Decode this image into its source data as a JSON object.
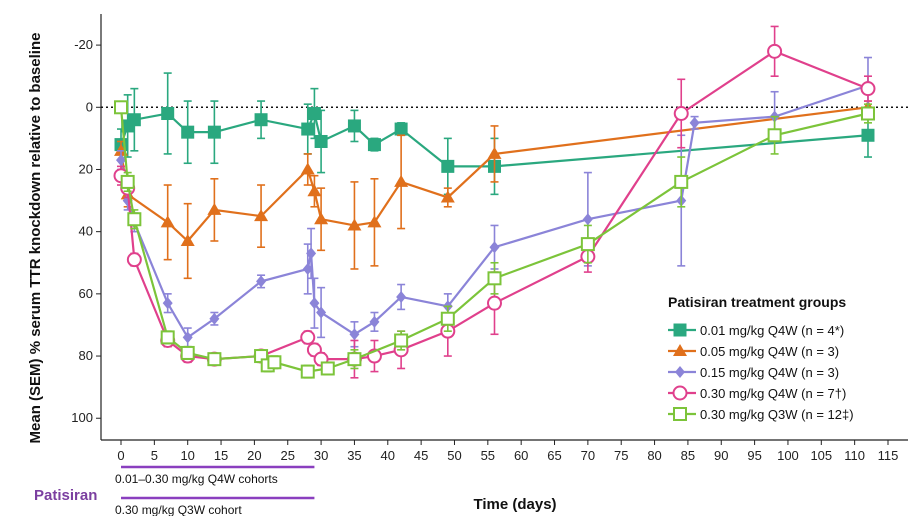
{
  "chart_data": {
    "type": "line",
    "title": "",
    "xlabel": "Time (days)",
    "ylabel": "Mean (SEM) % serum TTR knockdown relative to baseline",
    "xlim": [
      -3,
      118
    ],
    "ylim": [
      -30,
      107
    ],
    "y_inverted": true,
    "grid": false,
    "x_ticks": [
      0,
      5,
      10,
      15,
      20,
      25,
      30,
      35,
      40,
      45,
      50,
      55,
      60,
      65,
      70,
      75,
      80,
      85,
      90,
      95,
      100,
      105,
      110,
      115
    ],
    "x_tick_labels": [
      "0",
      "5",
      "10",
      "15",
      "20",
      "25",
      "30",
      "35",
      "40",
      "45",
      "50",
      "55",
      "60",
      "65",
      "70",
      "75",
      "80",
      "85",
      "90",
      "95",
      "100",
      "105",
      "110",
      "115"
    ],
    "y_ticks": [
      -20,
      0,
      20,
      40,
      60,
      80,
      100
    ],
    "y_tick_labels": [
      "-20",
      "0",
      "20",
      "40",
      "60",
      "80",
      "100"
    ],
    "baseline": 0,
    "legend": {
      "title": "Patisiran treatment groups",
      "placement": "right"
    },
    "series": [
      {
        "name": "0.01 mg/kg Q4W (n = 4*)",
        "color": "#2aa87f",
        "marker": "square-filled",
        "points": [
          {
            "x": 0,
            "y": 12,
            "err": 5
          },
          {
            "x": 1,
            "y": 6,
            "err": 10
          },
          {
            "x": 2,
            "y": 4,
            "err": 10
          },
          {
            "x": 7,
            "y": 2,
            "err": 13
          },
          {
            "x": 10,
            "y": 8,
            "err": 10
          },
          {
            "x": 14,
            "y": 8,
            "err": 10
          },
          {
            "x": 21,
            "y": 4,
            "err": 6
          },
          {
            "x": 28,
            "y": 7,
            "err": 8
          },
          {
            "x": 29,
            "y": 2,
            "err": 8
          },
          {
            "x": 30,
            "y": 11,
            "err": 10
          },
          {
            "x": 35,
            "y": 6,
            "err": 5
          },
          {
            "x": 38,
            "y": 12,
            "err": 2
          },
          {
            "x": 42,
            "y": 7,
            "err": 2
          },
          {
            "x": 49,
            "y": 19,
            "err": 9
          },
          {
            "x": 56,
            "y": 19,
            "err": 9
          },
          {
            "x": 112,
            "y": 9,
            "err": 7
          }
        ]
      },
      {
        "name": "0.05 mg/kg Q4W (n = 3)",
        "color": "#e0701c",
        "marker": "triangle-filled",
        "points": [
          {
            "x": 0,
            "y": 14,
            "err": 3
          },
          {
            "x": 1,
            "y": 28,
            "err": 4
          },
          {
            "x": 7,
            "y": 37,
            "err": 12
          },
          {
            "x": 10,
            "y": 43,
            "err": 12
          },
          {
            "x": 14,
            "y": 33,
            "err": 10
          },
          {
            "x": 21,
            "y": 35,
            "err": 10
          },
          {
            "x": 28,
            "y": 20,
            "err": 5
          },
          {
            "x": 29,
            "y": 27,
            "err": 5
          },
          {
            "x": 30,
            "y": 36,
            "err": 10
          },
          {
            "x": 35,
            "y": 38,
            "err": 14
          },
          {
            "x": 38,
            "y": 37,
            "err": 14
          },
          {
            "x": 42,
            "y": 24,
            "err": 15
          },
          {
            "x": 49,
            "y": 29,
            "err": 3
          },
          {
            "x": 56,
            "y": 15,
            "err": 9
          },
          {
            "x": 112,
            "y": 0,
            "err": 2
          }
        ]
      },
      {
        "name": "0.15 mg/kg Q4W (n = 3)",
        "color": "#8b84d8",
        "marker": "diamond-filled",
        "points": [
          {
            "x": 0,
            "y": 17,
            "err": 3
          },
          {
            "x": 1,
            "y": 30,
            "err": 3
          },
          {
            "x": 2,
            "y": 37,
            "err": 3
          },
          {
            "x": 7,
            "y": 63,
            "err": 3
          },
          {
            "x": 10,
            "y": 74,
            "err": 3
          },
          {
            "x": 14,
            "y": 68,
            "err": 2
          },
          {
            "x": 21,
            "y": 56,
            "err": 2
          },
          {
            "x": 28,
            "y": 52,
            "err": 8
          },
          {
            "x": 28.5,
            "y": 47,
            "err": 8
          },
          {
            "x": 29,
            "y": 63,
            "err": 8
          },
          {
            "x": 30,
            "y": 66,
            "err": 8
          },
          {
            "x": 35,
            "y": 73,
            "err": 4
          },
          {
            "x": 38,
            "y": 69,
            "err": 3
          },
          {
            "x": 42,
            "y": 61,
            "err": 4
          },
          {
            "x": 49,
            "y": 64,
            "err": 4
          },
          {
            "x": 56,
            "y": 45,
            "err": 7
          },
          {
            "x": 70,
            "y": 36,
            "err": 15
          },
          {
            "x": 84,
            "y": 30,
            "err": 21
          },
          {
            "x": 86,
            "y": 5,
            "err": 2
          },
          {
            "x": 98,
            "y": 3,
            "err": 8
          },
          {
            "x": 112,
            "y": -7,
            "err": 9
          }
        ]
      },
      {
        "name": "0.30 mg/kg Q4W (n = 7†)",
        "color": "#e0408c",
        "marker": "circle-open",
        "points": [
          {
            "x": 0,
            "y": 22,
            "err": 3
          },
          {
            "x": 1,
            "y": 26,
            "err": 3
          },
          {
            "x": 2,
            "y": 49,
            "err": 2
          },
          {
            "x": 7,
            "y": 75,
            "err": 2
          },
          {
            "x": 10,
            "y": 80,
            "err": 2
          },
          {
            "x": 14,
            "y": 81,
            "err": 1
          },
          {
            "x": 21,
            "y": 80,
            "err": 2
          },
          {
            "x": 28,
            "y": 74,
            "err": 2
          },
          {
            "x": 29,
            "y": 78,
            "err": 2
          },
          {
            "x": 30,
            "y": 81,
            "err": 2
          },
          {
            "x": 35,
            "y": 81,
            "err": 6
          },
          {
            "x": 38,
            "y": 80,
            "err": 5
          },
          {
            "x": 42,
            "y": 78,
            "err": 6
          },
          {
            "x": 49,
            "y": 72,
            "err": 8
          },
          {
            "x": 56,
            "y": 63,
            "err": 10
          },
          {
            "x": 70,
            "y": 48,
            "err": 5
          },
          {
            "x": 84,
            "y": 2,
            "err": 11
          },
          {
            "x": 98,
            "y": -18,
            "err": 8
          },
          {
            "x": 112,
            "y": -6,
            "err": 4
          }
        ]
      },
      {
        "name": "0.30 mg/kg Q3W (n = 12‡)",
        "color": "#7cc43a",
        "marker": "square-open",
        "points": [
          {
            "x": 0,
            "y": 0,
            "err": 1
          },
          {
            "x": 1,
            "y": 24,
            "err": 3
          },
          {
            "x": 2,
            "y": 36,
            "err": 3
          },
          {
            "x": 7,
            "y": 74,
            "err": 2
          },
          {
            "x": 10,
            "y": 79,
            "err": 2
          },
          {
            "x": 14,
            "y": 81,
            "err": 1
          },
          {
            "x": 21,
            "y": 80,
            "err": 2
          },
          {
            "x": 22,
            "y": 83,
            "err": 2
          },
          {
            "x": 23,
            "y": 82,
            "err": 2
          },
          {
            "x": 28,
            "y": 85,
            "err": 2
          },
          {
            "x": 31,
            "y": 84,
            "err": 2
          },
          {
            "x": 35,
            "y": 81,
            "err": 3
          },
          {
            "x": 42,
            "y": 75,
            "err": 3
          },
          {
            "x": 49,
            "y": 68,
            "err": 4
          },
          {
            "x": 56,
            "y": 55,
            "err": 5
          },
          {
            "x": 70,
            "y": 44,
            "err": 6
          },
          {
            "x": 84,
            "y": 24,
            "err": 8
          },
          {
            "x": 98,
            "y": 9,
            "err": 6
          },
          {
            "x": 112,
            "y": 2,
            "err": 3
          }
        ]
      }
    ],
    "dosing_annotation": {
      "label": "Patisiran",
      "bars": [
        {
          "text": "0.01–0.30 mg/kg Q4W cohorts",
          "x_start": 0,
          "x_end": 29
        },
        {
          "text": "0.30 mg/kg Q3W cohort",
          "x_start": 0,
          "x_end": 29
        }
      ],
      "color": "#8a3fbf"
    }
  }
}
